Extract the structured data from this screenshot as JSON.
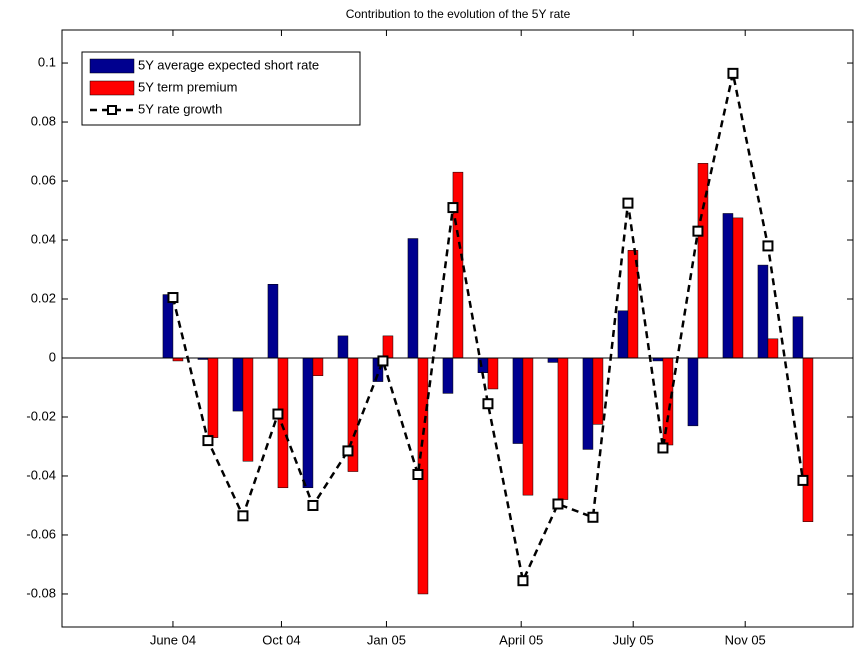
{
  "chart_data": {
    "type": "bar-line",
    "title": "Contribution to the evolution of the 5Y rate",
    "x": [
      0,
      1,
      2,
      3,
      4,
      5,
      6,
      7,
      8,
      9,
      10,
      11,
      12,
      13,
      14,
      15,
      16,
      17,
      18
    ],
    "xlim": [
      -3.17,
      19.43
    ],
    "xticks": [
      {
        "value": 0,
        "label": "June 04"
      },
      {
        "value": 3.1,
        "label": "Oct 04"
      },
      {
        "value": 6.1,
        "label": "Jan 05"
      },
      {
        "value": 9.95,
        "label": "April 05"
      },
      {
        "value": 13.15,
        "label": "July 05"
      },
      {
        "value": 16.35,
        "label": "Nov 05"
      }
    ],
    "ylim": [
      -0.0912,
      0.1112
    ],
    "yticks": [
      -0.08,
      -0.06,
      -0.04,
      -0.02,
      0,
      0.02,
      0.04,
      0.06,
      0.08,
      0.1
    ],
    "legend": "top-left",
    "series": [
      {
        "name": "5Y average expected short rate",
        "type": "bar",
        "color": "#00008f",
        "values": [
          0.0215,
          -0.0005,
          -0.018,
          0.025,
          -0.044,
          0.0075,
          -0.008,
          0.0405,
          -0.012,
          -0.005,
          -0.029,
          -0.0015,
          -0.031,
          0.016,
          -0.001,
          -0.023,
          0.049,
          0.0315,
          0.014
        ]
      },
      {
        "name": "5Y term premium",
        "type": "bar",
        "color": "#ff0000",
        "values": [
          -0.001,
          -0.027,
          -0.035,
          -0.044,
          -0.006,
          -0.0385,
          0.0075,
          -0.08,
          0.063,
          -0.0105,
          -0.0465,
          -0.048,
          -0.0225,
          0.0365,
          -0.0295,
          0.066,
          0.0475,
          0.0065,
          -0.0555
        ]
      },
      {
        "name": "5Y rate growth",
        "type": "line",
        "color": "#000000",
        "values": [
          0.0205,
          -0.028,
          -0.0535,
          -0.019,
          -0.05,
          -0.0315,
          -0.001,
          -0.0395,
          0.051,
          -0.0155,
          -0.0755,
          -0.0495,
          -0.054,
          0.0525,
          -0.0305,
          0.043,
          0.0965,
          0.038,
          -0.0415
        ]
      }
    ]
  }
}
